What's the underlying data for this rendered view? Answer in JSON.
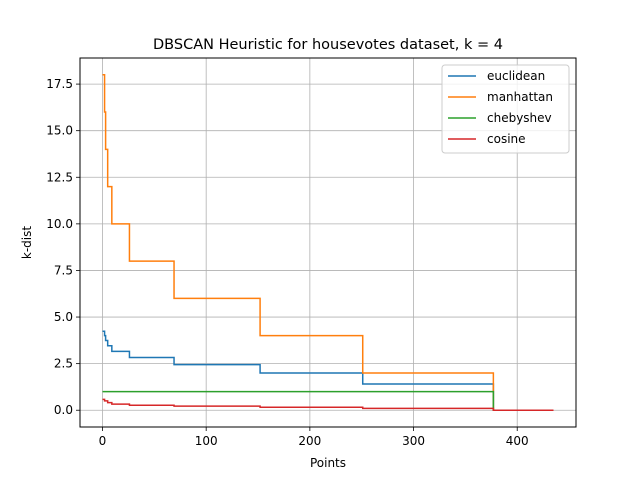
{
  "chart_data": {
    "type": "line",
    "title": "DBSCAN Heuristic for housevotes dataset, k = 4",
    "xlabel": "Points",
    "ylabel": "k-dist",
    "xlim": [
      -21.7,
      456.7
    ],
    "ylim": [
      -0.9,
      18.9
    ],
    "xticks": [
      0,
      100,
      200,
      300,
      400
    ],
    "xtick_labels": [
      "0",
      "100",
      "200",
      "300",
      "400"
    ],
    "yticks": [
      0,
      2.5,
      5,
      7.5,
      10,
      12.5,
      15,
      17.5
    ],
    "ytick_labels": [
      "0.0",
      "2.5",
      "5.0",
      "7.5",
      "10.0",
      "12.5",
      "15.0",
      "17.5"
    ],
    "grid": true,
    "legend_position": "top-right",
    "series": [
      {
        "name": "euclidean",
        "color": "#1f77b4",
        "step": true,
        "x": [
          0,
          2,
          3,
          5,
          9,
          26,
          69,
          152,
          251,
          376,
          377,
          435
        ],
        "y": [
          4.24,
          4.0,
          3.74,
          3.46,
          3.16,
          2.83,
          2.45,
          2.0,
          1.41,
          1.41,
          0.0,
          0.0
        ]
      },
      {
        "name": "manhattan",
        "color": "#ff7f0e",
        "step": true,
        "x": [
          0,
          2,
          3,
          5,
          9,
          26,
          69,
          152,
          251,
          376,
          377,
          435
        ],
        "y": [
          18.0,
          16.0,
          14.0,
          12.0,
          10.0,
          8.0,
          6.0,
          4.0,
          2.0,
          2.0,
          0.0,
          0.0
        ]
      },
      {
        "name": "chebyshev",
        "color": "#2ca02c",
        "step": true,
        "x": [
          0,
          376,
          377,
          435
        ],
        "y": [
          1.0,
          1.0,
          0.0,
          0.0
        ]
      },
      {
        "name": "cosine",
        "color": "#d62728",
        "step": true,
        "x": [
          0,
          2,
          5,
          9,
          26,
          69,
          152,
          251,
          376,
          377,
          435
        ],
        "y": [
          0.58,
          0.5,
          0.41,
          0.33,
          0.27,
          0.22,
          0.16,
          0.1,
          0.1,
          0.0,
          0.0
        ]
      }
    ]
  }
}
